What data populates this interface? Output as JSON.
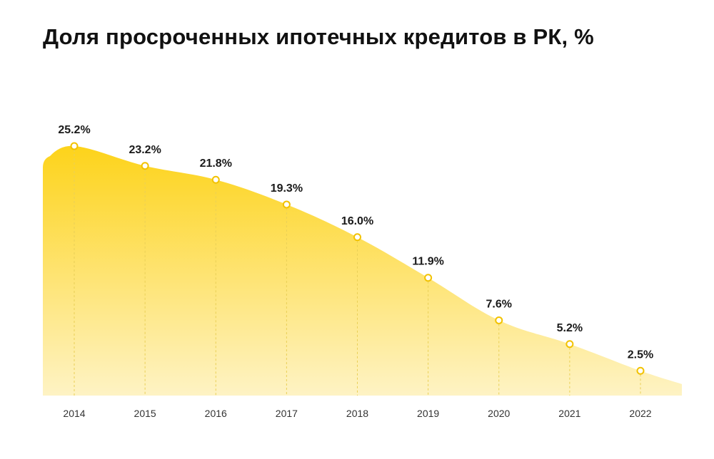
{
  "chart_data": {
    "type": "area",
    "title": "Доля просроченных ипотечных кредитов в РК, %",
    "xlabel": "",
    "ylabel": "",
    "categories": [
      "2014",
      "2015",
      "2016",
      "2017",
      "2018",
      "2019",
      "2020",
      "2021",
      "2022"
    ],
    "values": [
      25.2,
      23.2,
      21.8,
      19.3,
      16.0,
      11.9,
      7.6,
      5.2,
      2.5
    ],
    "data_labels": [
      "25.2%",
      "23.2%",
      "21.8%",
      "19.3%",
      "16.0%",
      "11.9%",
      "7.6%",
      "5.2%",
      "2.5%"
    ],
    "ylim": [
      0,
      25.2
    ],
    "grid": false,
    "legend": "none",
    "colors": {
      "fill_top": "#FDD31A",
      "fill_bottom": "#FEF3C4",
      "point": "#F2C200",
      "point_center": "#FFFFFF",
      "drop_line": "#E9CF57"
    }
  }
}
